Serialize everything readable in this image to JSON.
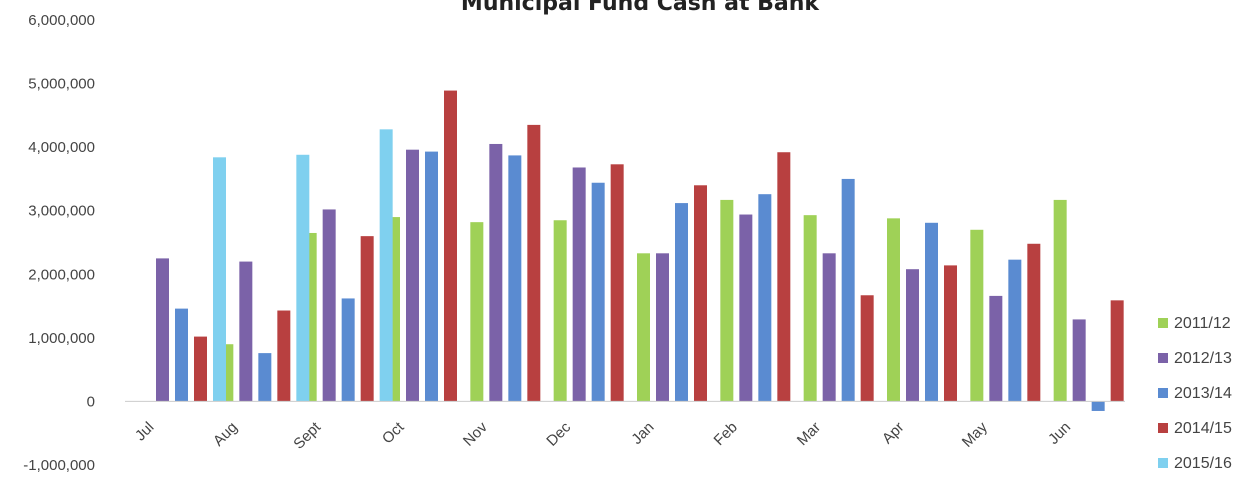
{
  "chart_data": {
    "type": "bar",
    "title": "Municipal Fund Cash at Bank",
    "xlabel": "",
    "ylabel": "",
    "ylim": [
      -1000000,
      6000000
    ],
    "yticks": [
      -1000000,
      0,
      1000000,
      2000000,
      3000000,
      4000000,
      5000000,
      6000000
    ],
    "ytick_labels": [
      "-1,000,000",
      "0",
      "1,000,000",
      "2,000,000",
      "3,000,000",
      "4,000,000",
      "5,000,000",
      "6,000,000"
    ],
    "grid": false,
    "legend_position": "right",
    "categories": [
      "Jul",
      "Aug",
      "Sept",
      "Oct",
      "Nov",
      "Dec",
      "Jan",
      "Feb",
      "Mar",
      "Apr",
      "May",
      "Jun"
    ],
    "series": [
      {
        "name": "2011/12",
        "color": "#9fd157",
        "values": [
          0,
          900000,
          2650000,
          2900000,
          2820000,
          2850000,
          2330000,
          3170000,
          2930000,
          2880000,
          2700000,
          3170000
        ]
      },
      {
        "name": "2012/13",
        "color": "#7b62a8",
        "values": [
          2250000,
          2200000,
          3020000,
          3960000,
          4050000,
          3680000,
          2330000,
          2940000,
          2330000,
          2080000,
          1660000,
          1290000
        ]
      },
      {
        "name": "2013/14",
        "color": "#5a8bd1",
        "values": [
          1460000,
          760000,
          1620000,
          3930000,
          3870000,
          3440000,
          3120000,
          3260000,
          3500000,
          2810000,
          2230000,
          -150000
        ]
      },
      {
        "name": "2014/15",
        "color": "#b84040",
        "values": [
          1020000,
          1430000,
          2600000,
          4890000,
          4350000,
          3730000,
          3400000,
          3920000,
          1670000,
          2140000,
          2480000,
          1590000
        ]
      },
      {
        "name": "2015/16",
        "color": "#7fd0ef",
        "values": [
          3840000,
          3880000,
          4280000,
          null,
          null,
          null,
          null,
          null,
          null,
          null,
          null,
          null
        ]
      }
    ]
  }
}
